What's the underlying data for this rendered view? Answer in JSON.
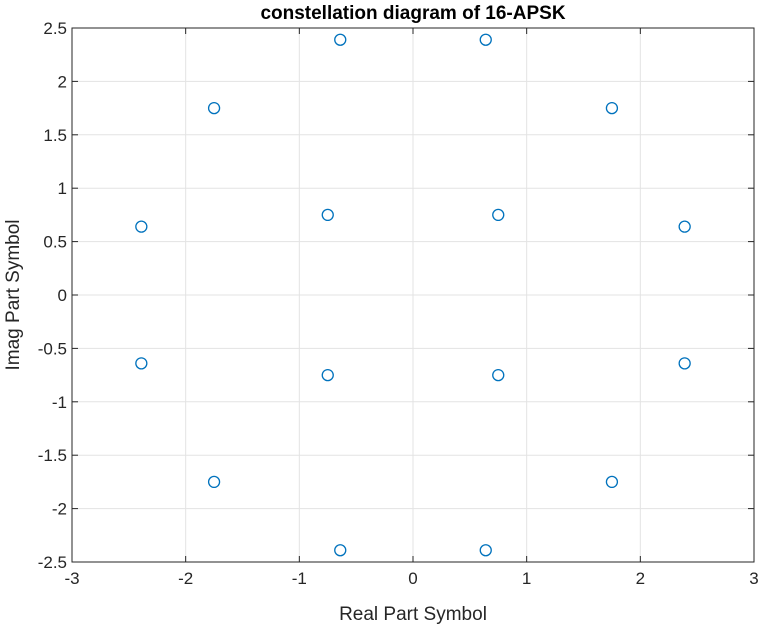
{
  "chart_data": {
    "type": "scatter",
    "title": "constellation diagram of 16-APSK",
    "xlabel": "Real Part Symbol",
    "ylabel": "Imag Part Symbol",
    "xlim": [
      -3,
      3
    ],
    "ylim": [
      -2.5,
      2.5
    ],
    "xticks": [
      -3,
      -2,
      -1,
      0,
      1,
      2,
      3
    ],
    "yticks": [
      -2.5,
      -2,
      -1.5,
      -1,
      -0.5,
      0,
      0.5,
      1,
      1.5,
      2,
      2.5
    ],
    "xtick_labels": [
      "-3",
      "-2",
      "-1",
      "0",
      "1",
      "2",
      "3"
    ],
    "ytick_labels": [
      "-2.5",
      "-2",
      "-1.5",
      "-1",
      "-0.5",
      "0",
      "0.5",
      "1",
      "1.5",
      "2",
      "2.5"
    ],
    "grid": true,
    "marker": "circle",
    "series": [
      {
        "color": "#0072bd",
        "points": [
          {
            "x": 0.75,
            "y": 0.75
          },
          {
            "x": -0.75,
            "y": 0.75
          },
          {
            "x": -0.75,
            "y": -0.75
          },
          {
            "x": 0.75,
            "y": -0.75
          },
          {
            "x": 2.39,
            "y": 0.64
          },
          {
            "x": 1.75,
            "y": 1.75
          },
          {
            "x": 0.64,
            "y": 2.39
          },
          {
            "x": -0.64,
            "y": 2.39
          },
          {
            "x": -1.75,
            "y": 1.75
          },
          {
            "x": -2.39,
            "y": 0.64
          },
          {
            "x": -2.39,
            "y": -0.64
          },
          {
            "x": -1.75,
            "y": -1.75
          },
          {
            "x": -0.64,
            "y": -2.39
          },
          {
            "x": 0.64,
            "y": -2.39
          },
          {
            "x": 1.75,
            "y": -1.75
          },
          {
            "x": 2.39,
            "y": -0.64
          }
        ]
      }
    ]
  }
}
